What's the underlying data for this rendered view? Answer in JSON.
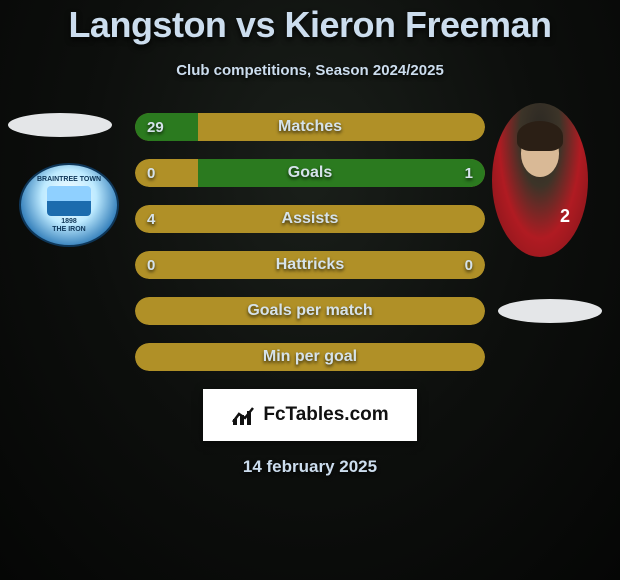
{
  "header": {
    "title": "Langston vs Kieron Freeman",
    "subtitle": "Club competitions, Season 2024/2025"
  },
  "colors": {
    "gold": "#b09027",
    "green": "#2b7a1f",
    "red": "#a81b1b",
    "text": "#d5e2ea"
  },
  "left_player": {
    "badge_top": "BRAINTREE TOWN",
    "badge_year": "1898",
    "badge_bottom": "THE IRON"
  },
  "right_player": {
    "jersey_number": "2"
  },
  "stats": [
    {
      "label": "Matches",
      "left_val": "29",
      "right_val": "",
      "left_pct": 18,
      "right_pct": 0,
      "left_color": "green",
      "right_color": "",
      "bg": "gold"
    },
    {
      "label": "Goals",
      "left_val": "0",
      "right_val": "1",
      "left_pct": 0,
      "right_pct": 82,
      "left_color": "",
      "right_color": "green",
      "bg": "gold"
    },
    {
      "label": "Assists",
      "left_val": "4",
      "right_val": "",
      "left_pct": 0,
      "right_pct": 0,
      "left_color": "",
      "right_color": "",
      "bg": "gold"
    },
    {
      "label": "Hattricks",
      "left_val": "0",
      "right_val": "0",
      "left_pct": 0,
      "right_pct": 0,
      "left_color": "",
      "right_color": "",
      "bg": "gold"
    },
    {
      "label": "Goals per match",
      "left_val": "",
      "right_val": "",
      "left_pct": 0,
      "right_pct": 0,
      "left_color": "",
      "right_color": "",
      "bg": "gold"
    },
    {
      "label": "Min per goal",
      "left_val": "",
      "right_val": "",
      "left_pct": 0,
      "right_pct": 0,
      "left_color": "",
      "right_color": "",
      "bg": "gold"
    }
  ],
  "footer": {
    "site": "FcTables.com",
    "date": "14 february 2025"
  }
}
